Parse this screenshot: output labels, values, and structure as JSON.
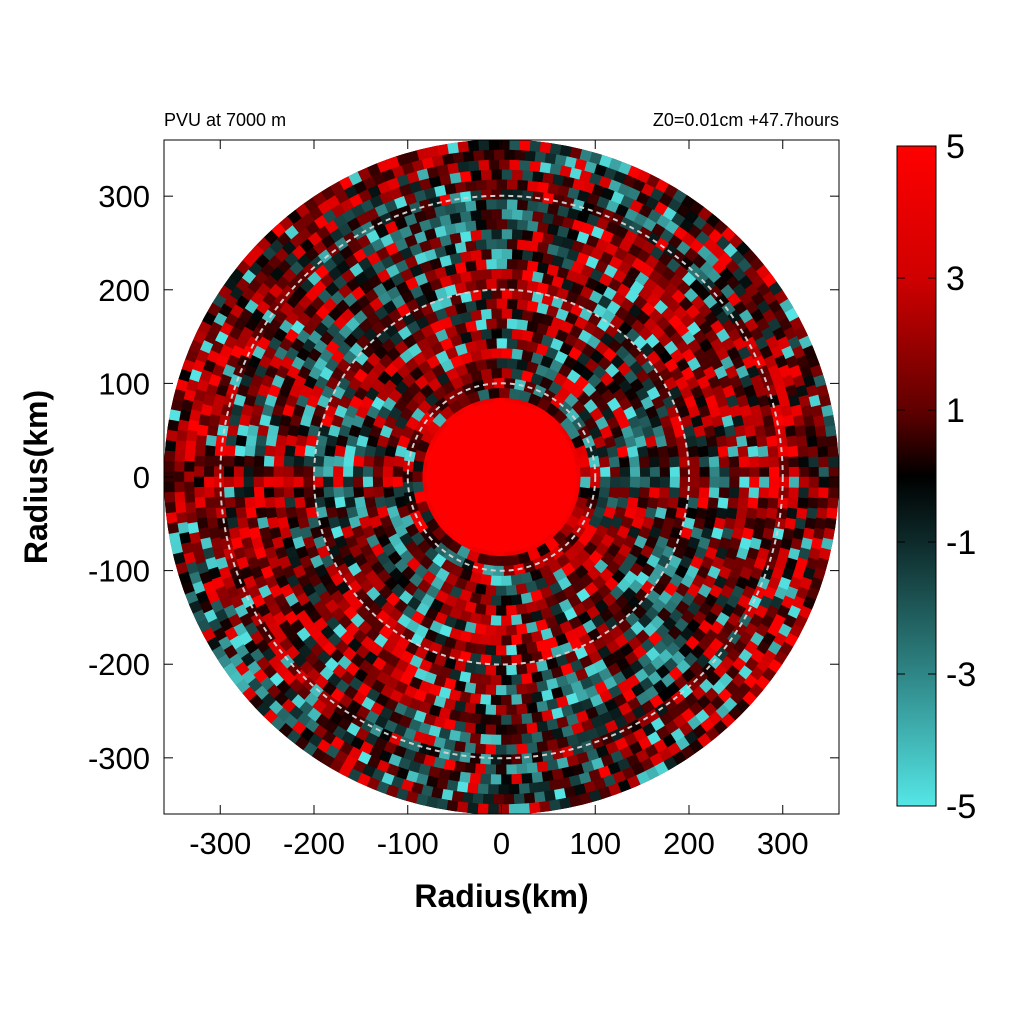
{
  "header": {
    "left_title": "PVU at  7000 m",
    "right_title": "Z0=0.01cm  +47.7hours"
  },
  "chart_data": {
    "type": "heatmap",
    "projection": "polar",
    "xlabel": "Radius(km)",
    "ylabel": "Radius(km)",
    "xlim": [
      -360,
      360
    ],
    "ylim": [
      -360,
      360
    ],
    "data_radius_km": 360,
    "x_ticks": [
      "-300",
      "-200",
      "-100",
      "0",
      "100",
      "200",
      "300"
    ],
    "y_ticks": [
      "300",
      "200",
      "100",
      "0",
      "-100",
      "-200",
      "-300"
    ],
    "x_tick_values": [
      -300,
      -200,
      -100,
      0,
      100,
      200,
      300
    ],
    "y_tick_values": [
      300,
      200,
      100,
      0,
      -100,
      -200,
      -300
    ],
    "reference_circles_km": [
      100,
      200,
      300
    ],
    "grid": false,
    "colorbar": {
      "range": [
        -5,
        5
      ],
      "ticks": [
        "5",
        "3",
        "1",
        "-1",
        "-3",
        "-5"
      ],
      "tick_values": [
        5,
        3,
        1,
        -1,
        -3,
        -5
      ],
      "colors": {
        "max": "#ff0000",
        "mid": "#000000",
        "min": "#55e6e6"
      },
      "placement": "right"
    },
    "field_description": {
      "core_radius_km": 80,
      "core_value": 5
    }
  },
  "colors": {
    "background": "#ffffff",
    "frame": "#000000",
    "reference_circle": "#cfcfcf"
  }
}
